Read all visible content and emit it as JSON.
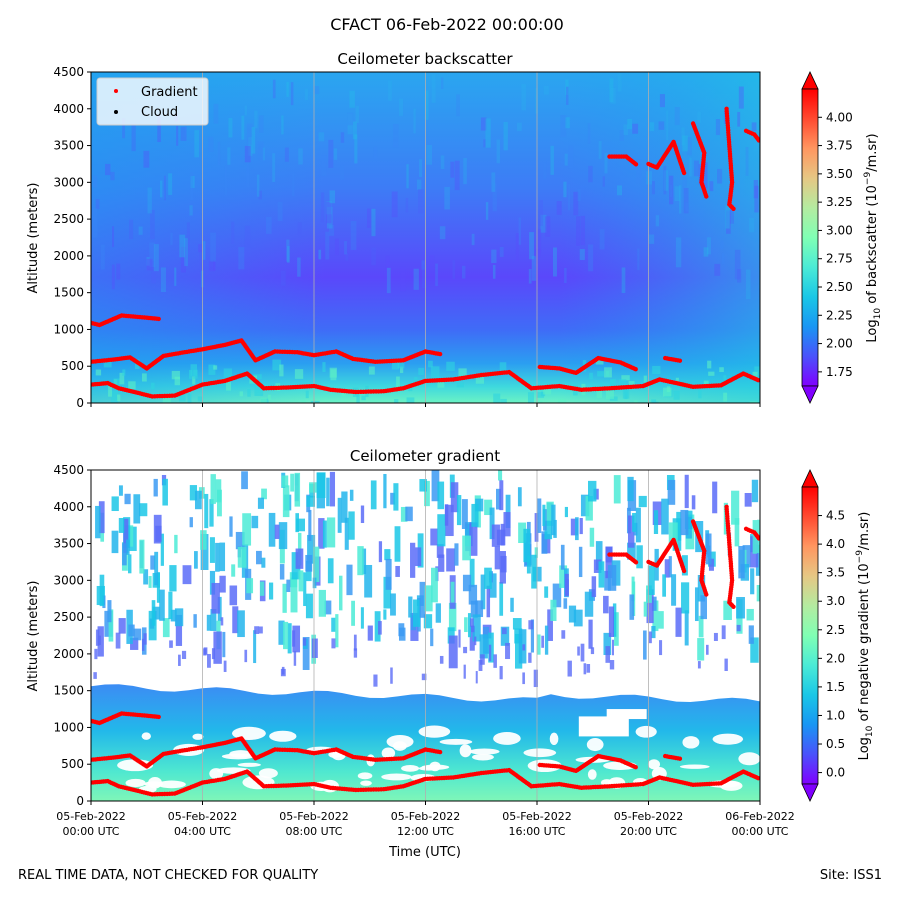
{
  "figure": {
    "suptitle": "CFACT 06-Feb-2022 00:00:00",
    "footer_left": "REAL TIME DATA, NOT CHECKED FOR QUALITY",
    "footer_right": "Site: ISS1"
  },
  "colors": {
    "rainbow": [
      "#8000ff",
      "#4a52fb",
      "#1996f3",
      "#1ac7e6",
      "#4bebd6",
      "#80ffb4",
      "#b4eba0",
      "#e6c784",
      "#ff9660",
      "#ff4a30",
      "#ff0000"
    ],
    "marker": "#ff0000",
    "grid": "#b0b0b0"
  },
  "chart_data": [
    {
      "type": "heatmap",
      "title": "Ceilometer backscatter",
      "ylabel": "Altitude (meters)",
      "ylim": [
        0,
        4500
      ],
      "yticks": [
        0,
        500,
        1000,
        1500,
        2000,
        2500,
        3000,
        3500,
        4000,
        4500
      ],
      "x_range_hours": [
        0,
        24
      ],
      "colorbar": {
        "label": "Log10 of backscatter (10^-9/m.sr)",
        "label_main": "Log",
        "label_sub": "10",
        "label_rest": " of backscatter (10",
        "label_sup": "−9",
        "label_end": "/m.sr)",
        "range": [
          1.625,
          4.25
        ],
        "ticks": [
          "1.75",
          "2.00",
          "2.25",
          "2.50",
          "2.75",
          "3.00",
          "3.25",
          "3.50",
          "3.75",
          "4.00"
        ]
      },
      "legend": {
        "placement": "top-left",
        "entries": [
          {
            "label": "Gradient",
            "color": "#ff0000"
          },
          {
            "label": "Cloud",
            "color": "#000000"
          }
        ]
      }
    },
    {
      "type": "heatmap",
      "title": "Ceilometer gradient",
      "ylabel": "Altitude (meters)",
      "xlabel": "Time (UTC)",
      "ylim": [
        0,
        4500
      ],
      "yticks": [
        0,
        500,
        1000,
        1500,
        2000,
        2500,
        3000,
        3500,
        4000,
        4500
      ],
      "x_range_hours": [
        0,
        24
      ],
      "xticks": [
        {
          "hour": 0,
          "date": "05-Feb-2022",
          "time": "00:00 UTC"
        },
        {
          "hour": 4,
          "date": "05-Feb-2022",
          "time": "04:00 UTC"
        },
        {
          "hour": 8,
          "date": "05-Feb-2022",
          "time": "08:00 UTC"
        },
        {
          "hour": 12,
          "date": "05-Feb-2022",
          "time": "12:00 UTC"
        },
        {
          "hour": 16,
          "date": "05-Feb-2022",
          "time": "16:00 UTC"
        },
        {
          "hour": 20,
          "date": "05-Feb-2022",
          "time": "20:00 UTC"
        },
        {
          "hour": 24,
          "date": "06-Feb-2022",
          "time": "00:00 UTC"
        }
      ],
      "colorbar": {
        "label": "Log10 of negative gradient (10^-9/m.sr)",
        "label_main": "Log",
        "label_sub": "10",
        "label_rest": " of negative gradient (10",
        "label_sup": "−9",
        "label_end": "/m.sr)",
        "range": [
          -0.2,
          5.0
        ],
        "ticks": [
          "0.0",
          "0.5",
          "1.0",
          "1.5",
          "2.0",
          "2.5",
          "3.0",
          "3.5",
          "4.0",
          "4.5"
        ]
      }
    }
  ],
  "gradient_layers": [
    {
      "name": "surface-layer",
      "points": [
        [
          0.0,
          250
        ],
        [
          0.6,
          270
        ],
        [
          1.0,
          200
        ],
        [
          2.2,
          90
        ],
        [
          3.0,
          100
        ],
        [
          4.0,
          250
        ],
        [
          4.8,
          300
        ],
        [
          5.6,
          400
        ],
        [
          6.2,
          200
        ],
        [
          7.0,
          210
        ],
        [
          8.0,
          230
        ],
        [
          8.6,
          180
        ],
        [
          9.5,
          150
        ],
        [
          10.5,
          160
        ],
        [
          11.2,
          200
        ],
        [
          12.0,
          300
        ],
        [
          13.0,
          320
        ],
        [
          14.0,
          380
        ],
        [
          15.0,
          420
        ],
        [
          15.8,
          200
        ],
        [
          16.8,
          230
        ],
        [
          17.6,
          180
        ],
        [
          18.6,
          200
        ],
        [
          19.8,
          230
        ],
        [
          20.4,
          320
        ],
        [
          21.0,
          270
        ],
        [
          21.6,
          220
        ],
        [
          22.6,
          240
        ],
        [
          23.4,
          400
        ],
        [
          24.0,
          300
        ]
      ]
    },
    {
      "name": "mixed-layer-top",
      "points": [
        [
          0.0,
          560
        ],
        [
          0.8,
          590
        ],
        [
          1.4,
          620
        ],
        [
          2.0,
          470
        ],
        [
          2.6,
          640
        ],
        [
          3.2,
          680
        ],
        [
          4.0,
          730
        ],
        [
          4.8,
          790
        ],
        [
          5.4,
          850
        ],
        [
          5.9,
          580
        ],
        [
          6.6,
          700
        ],
        [
          7.4,
          690
        ],
        [
          8.0,
          650
        ],
        [
          8.8,
          700
        ],
        [
          9.4,
          600
        ],
        [
          10.2,
          560
        ],
        [
          11.2,
          580
        ],
        [
          12.0,
          700
        ],
        [
          12.6,
          660
        ]
      ]
    },
    {
      "name": "upper-layer",
      "points": [
        [
          0.0,
          1090
        ],
        [
          0.3,
          1060
        ],
        [
          1.1,
          1190
        ],
        [
          2.0,
          1160
        ],
        [
          2.5,
          1140
        ]
      ]
    },
    {
      "name": "evening-layer",
      "points": [
        [
          16.1,
          490
        ],
        [
          16.8,
          470
        ],
        [
          17.4,
          410
        ],
        [
          18.2,
          610
        ],
        [
          19.0,
          550
        ],
        [
          19.6,
          450
        ]
      ]
    },
    {
      "name": "late-layer",
      "points": [
        [
          20.6,
          610
        ],
        [
          21.2,
          570
        ]
      ]
    },
    {
      "name": "cloud-trail-1",
      "points": [
        [
          18.6,
          3350
        ],
        [
          19.2,
          3350
        ],
        [
          19.6,
          3230
        ]
      ]
    },
    {
      "name": "cloud-trail-2",
      "points": [
        [
          21.6,
          3800
        ],
        [
          22.0,
          3400
        ],
        [
          21.9,
          3000
        ],
        [
          22.1,
          2780
        ]
      ]
    },
    {
      "name": "cloud-trail-3",
      "points": [
        [
          22.8,
          4000
        ],
        [
          23.0,
          3000
        ],
        [
          22.9,
          2700
        ],
        [
          23.1,
          2620
        ]
      ]
    },
    {
      "name": "cloud-trail-4",
      "points": [
        [
          23.5,
          3700
        ],
        [
          23.8,
          3650
        ],
        [
          24.0,
          3550
        ]
      ]
    },
    {
      "name": "cloud-trail-5",
      "points": [
        [
          20.0,
          3250
        ],
        [
          20.3,
          3200
        ],
        [
          20.9,
          3550
        ],
        [
          21.3,
          3100
        ]
      ]
    }
  ]
}
